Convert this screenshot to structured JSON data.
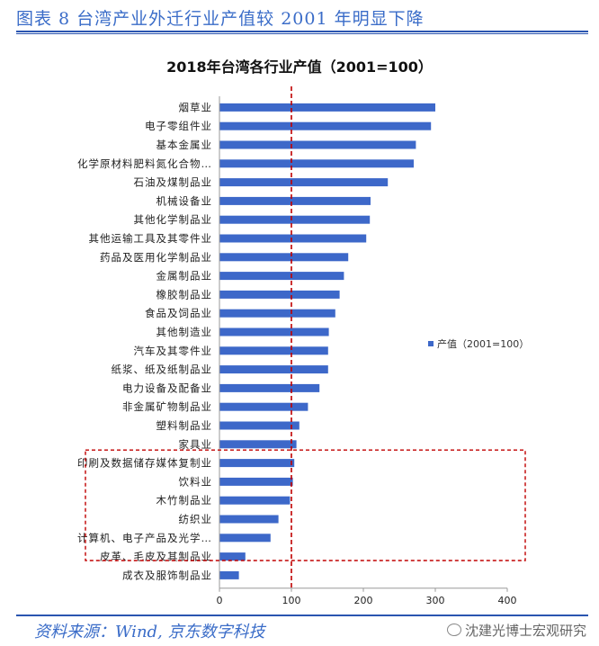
{
  "header": {
    "figure_title": "图表 8  台湾产业外迁行业产值较 2001 年明显下降"
  },
  "footer": {
    "source": "资料来源：Wind, 京东数字科技",
    "watermark": "沈建光博士宏观研究"
  },
  "colors": {
    "bar": "#3d68c9",
    "accent_rule": "#2a55b0",
    "reference_line": "#c00000",
    "highlight_box": "#c00000"
  },
  "chart_data": {
    "type": "bar",
    "orientation": "horizontal",
    "title": "2018年台湾各行业产值（2001=100）",
    "categories": [
      "烟草业",
      "电子零组件业",
      "基本金属业",
      "化学原材料肥料氮化合物…",
      "石油及煤制品业",
      "机械设备业",
      "其他化学制品业",
      "其他运输工具及其零件业",
      "药品及医用化学制品业",
      "金属制品业",
      "橡胶制品业",
      "食品及饲品业",
      "其他制造业",
      "汽车及其零件业",
      "纸浆、纸及纸制品业",
      "电力设备及配备业",
      "非金属矿物制品业",
      "塑料制品业",
      "家具业",
      "印刷及数据储存媒体复制业",
      "饮料业",
      "木竹制品业",
      "纺织业",
      "计算机、电子产品及光学…",
      "皮革、毛皮及其制品业",
      "成衣及服饰制品业"
    ],
    "series": [
      {
        "name": "产值（2001=100）",
        "values": [
          300,
          294,
          273,
          270,
          234,
          210,
          209,
          204,
          179,
          173,
          167,
          161,
          152,
          151,
          151,
          139,
          123,
          111,
          107,
          104,
          102,
          98,
          82,
          71,
          36,
          27
        ]
      }
    ],
    "xlim": [
      0,
      400
    ],
    "xticks": [
      0,
      100,
      200,
      300,
      400
    ],
    "reference_line": 100,
    "highlighted_categories": [
      "印刷及数据储存媒体复制业",
      "饮料业",
      "木竹制品业",
      "纺织业",
      "计算机、电子产品及光学…",
      "皮革、毛皮及其制品业"
    ],
    "legend": "right",
    "grid": false
  }
}
